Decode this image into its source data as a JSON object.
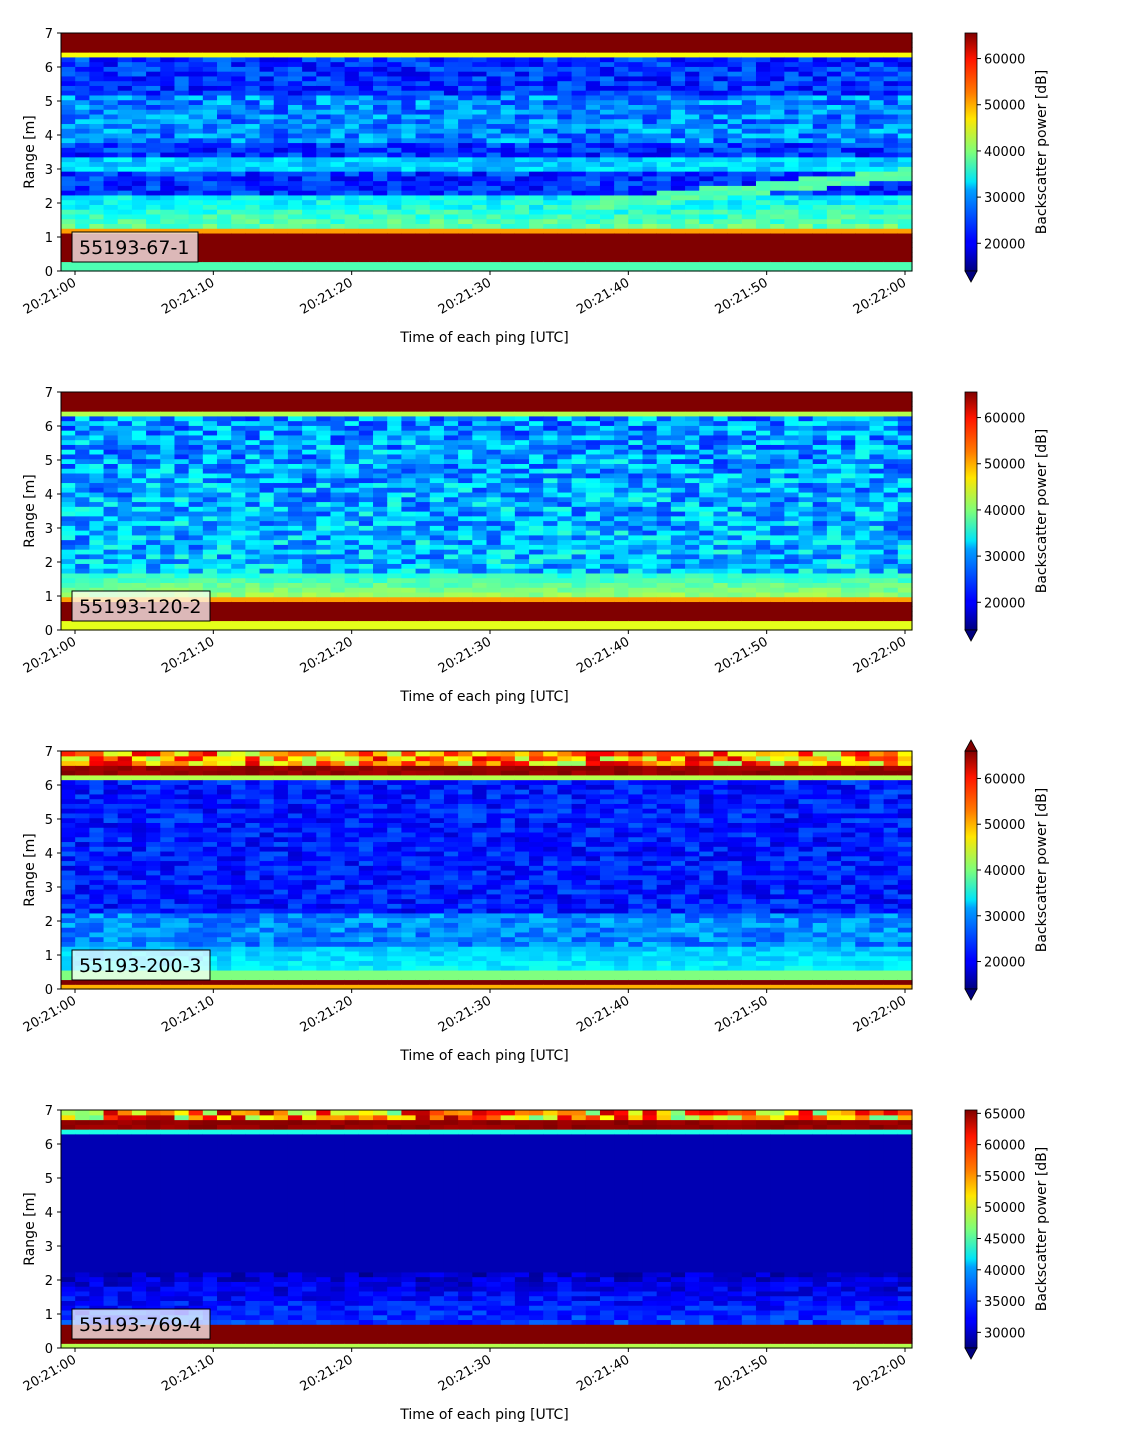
{
  "chart_data": [
    {
      "type": "heatmap",
      "badge": "55193-67-1",
      "xlabel": "Time of each ping [UTC]",
      "ylabel": "Range [m]",
      "colorbar_label": "Backscatter power [dB]",
      "x_ticks": [
        "20:21:00",
        "20:21:10",
        "20:21:20",
        "20:21:30",
        "20:21:40",
        "20:21:50",
        "20:22:00"
      ],
      "y_ticks": [
        "0",
        "1",
        "2",
        "3",
        "4",
        "5",
        "6",
        "7"
      ],
      "ylim": [
        0,
        7
      ],
      "colorbar_range": [
        14000,
        65535
      ],
      "colorbar_ticks": [
        "20000",
        "30000",
        "40000",
        "50000",
        "60000"
      ],
      "extend": "min",
      "colormap": "jet"
    },
    {
      "type": "heatmap",
      "badge": "55193-120-2",
      "xlabel": "Time of each ping [UTC]",
      "ylabel": "Range [m]",
      "colorbar_label": "Backscatter power [dB]",
      "x_ticks": [
        "20:21:00",
        "20:21:10",
        "20:21:20",
        "20:21:30",
        "20:21:40",
        "20:21:50",
        "20:22:00"
      ],
      "y_ticks": [
        "0",
        "1",
        "2",
        "3",
        "4",
        "5",
        "6",
        "7"
      ],
      "ylim": [
        0,
        7
      ],
      "colorbar_range": [
        14000,
        65535
      ],
      "colorbar_ticks": [
        "20000",
        "30000",
        "40000",
        "50000",
        "60000"
      ],
      "extend": "min",
      "colormap": "jet"
    },
    {
      "type": "heatmap",
      "badge": "55193-200-3",
      "xlabel": "Time of each ping [UTC]",
      "ylabel": "Range [m]",
      "colorbar_label": "Backscatter power [dB]",
      "x_ticks": [
        "20:21:00",
        "20:21:10",
        "20:21:20",
        "20:21:30",
        "20:21:40",
        "20:21:50",
        "20:22:00"
      ],
      "y_ticks": [
        "0",
        "1",
        "2",
        "3",
        "4",
        "5",
        "6",
        "7"
      ],
      "ylim": [
        0,
        7
      ],
      "colorbar_range": [
        14000,
        66000
      ],
      "colorbar_ticks": [
        "20000",
        "30000",
        "40000",
        "50000",
        "60000"
      ],
      "extend": "both",
      "colormap": "jet"
    },
    {
      "type": "heatmap",
      "badge": "55193-769-4",
      "xlabel": "Time of each ping [UTC]",
      "ylabel": "Range [m]",
      "colorbar_label": "Backscatter power [dB]",
      "x_ticks": [
        "20:21:00",
        "20:21:10",
        "20:21:20",
        "20:21:30",
        "20:21:40",
        "20:21:50",
        "20:22:00"
      ],
      "y_ticks": [
        "0",
        "1",
        "2",
        "3",
        "4",
        "5",
        "6",
        "7"
      ],
      "ylim": [
        0,
        7
      ],
      "colorbar_range": [
        27500,
        65535
      ],
      "colorbar_ticks": [
        "30000",
        "35000",
        "40000",
        "45000",
        "50000",
        "55000",
        "60000",
        "65000"
      ],
      "extend": "min",
      "colormap": "jet"
    }
  ]
}
